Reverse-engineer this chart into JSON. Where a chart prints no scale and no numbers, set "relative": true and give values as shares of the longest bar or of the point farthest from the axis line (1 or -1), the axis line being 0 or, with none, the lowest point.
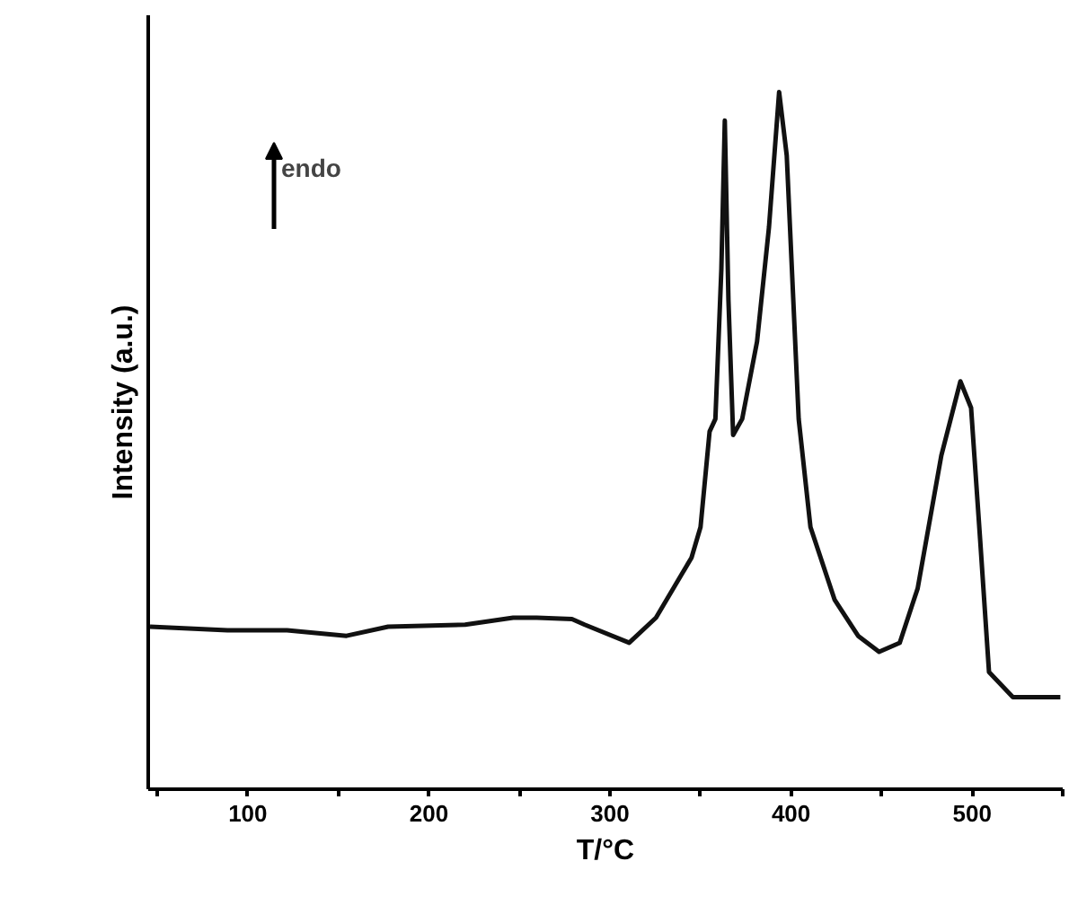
{
  "chart_data": {
    "type": "line",
    "relative": true,
    "xlabel": "T/°C",
    "ylabel": "Intensity (a.u.)",
    "annotations": [
      "endo"
    ],
    "color": "#111111",
    "x": [
      46,
      88.8,
      121.7,
      154.5,
      177.5,
      220,
      246.5,
      259.6,
      279,
      286,
      310.6,
      325.4,
      345,
      350,
      355,
      358.2,
      361.5,
      363.4,
      365.4,
      368,
      373,
      381.2,
      387.8,
      393.4,
      397.6,
      404.2,
      410.7,
      424,
      437,
      448.6,
      460,
      469.9,
      483,
      493.5,
      499.4,
      504.4,
      509.3,
      522.5,
      548.7
    ],
    "values": [
      0.233,
      0.228,
      0.228,
      0.22,
      0.233,
      0.236,
      0.246,
      0.246,
      0.244,
      0.236,
      0.21,
      0.246,
      0.332,
      0.376,
      0.513,
      0.531,
      0.746,
      0.959,
      0.702,
      0.508,
      0.531,
      0.642,
      0.806,
      1,
      0.909,
      0.531,
      0.376,
      0.272,
      0.22,
      0.197,
      0.21,
      0.288,
      0.479,
      0.585,
      0.547,
      0.358,
      0.168,
      0.132,
      0.132
    ],
    "xlim": [
      45,
      550
    ],
    "xticks": [
      {
        "value": 50,
        "label": null
      },
      100,
      {
        "value": 150,
        "label": null
      },
      200,
      {
        "value": 250,
        "label": null
      },
      300,
      {
        "value": 350,
        "label": null
      },
      400,
      {
        "value": 450,
        "label": null
      },
      500,
      {
        "value": 550,
        "label": null
      }
    ],
    "grid": false
  }
}
